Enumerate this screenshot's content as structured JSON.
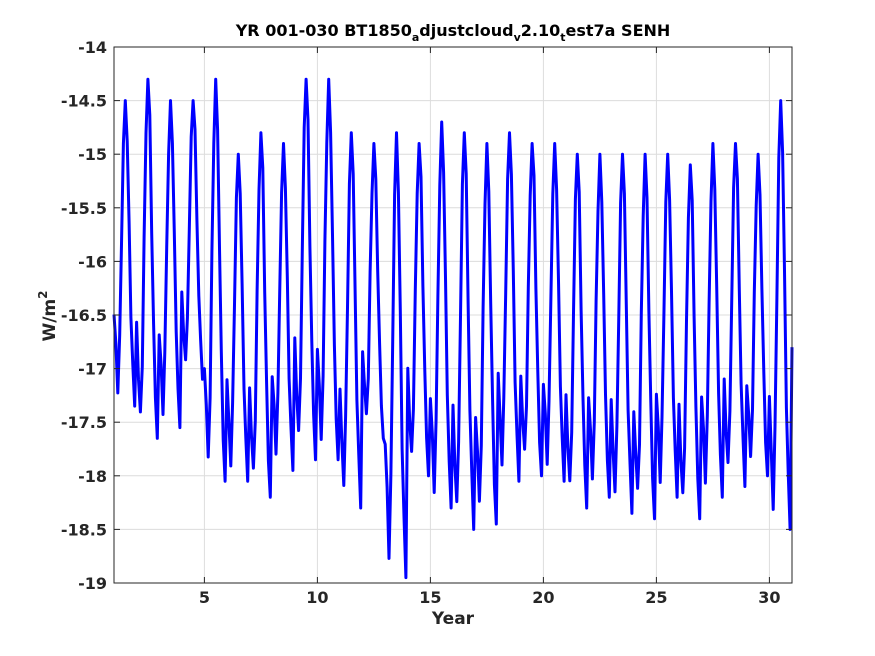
{
  "chart_data": {
    "type": "line",
    "title": {
      "p1": "YR 001-030 BT1850",
      "s1": "a",
      "p2": "djustcloud",
      "s2": "v",
      "p3": "2.10",
      "s3": "t",
      "p4": "est7a SENH"
    },
    "xlabel": "Year",
    "ylabel": {
      "base": "W/m",
      "sup": "2"
    },
    "xlim": [
      1,
      31
    ],
    "ylim": [
      -19,
      -14
    ],
    "xticks": [
      5,
      10,
      15,
      20,
      25,
      30
    ],
    "xtick_labels": [
      "5",
      "10",
      "15",
      "20",
      "25",
      "30"
    ],
    "yticks": [
      -19,
      -18.5,
      -18,
      -17.5,
      -17,
      -16.5,
      -16,
      -15.5,
      -15,
      -14.5,
      -14
    ],
    "ytick_labels": [
      "-19",
      "-18.5",
      "-18",
      "-17.5",
      "-17",
      "-16.5",
      "-16",
      "-15.5",
      "-15",
      "-14.5",
      "-14"
    ],
    "grid": true,
    "series": [
      {
        "color": "#0000ff",
        "annual_max": [
          -14.5,
          -14.3,
          -14.5,
          -14.5,
          -14.3,
          -15.0,
          -14.8,
          -14.9,
          -14.3,
          -14.3,
          -14.8,
          -14.9,
          -14.8,
          -14.9,
          -14.7,
          -14.8,
          -14.9,
          -14.8,
          -14.9,
          -14.9,
          -15.0,
          -15.0,
          -15.0,
          -15.0,
          -15.0,
          -15.1,
          -14.9,
          -14.9,
          -15.0,
          -14.5
        ],
        "annual_min": [
          -17.35,
          -17.65,
          -17.55,
          -17.1,
          -18.05,
          -18.05,
          -18.2,
          -17.95,
          -17.85,
          -17.85,
          -18.3,
          -17.65,
          -18.95,
          -18.0,
          -18.3,
          -18.5,
          -18.45,
          -18.05,
          -18.0,
          -18.05,
          -18.3,
          -18.2,
          -18.35,
          -18.4,
          -18.2,
          -18.4,
          -18.2,
          -18.1,
          -18.0,
          -18.5
        ]
      }
    ]
  }
}
